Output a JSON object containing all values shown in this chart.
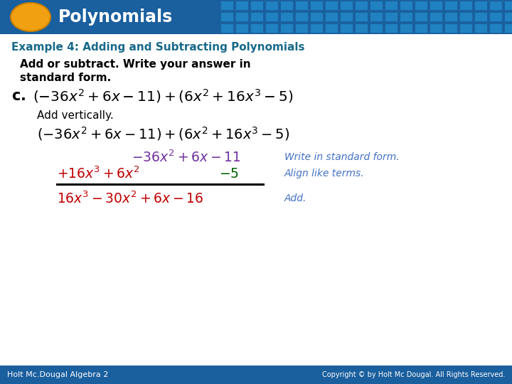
{
  "bg_color": "#ffffff",
  "header_bg_left": "#1a5f9e",
  "header_bg_right": "#1e82c8",
  "header_text": "Polynomials",
  "header_text_color": "#ffffff",
  "oval_color": "#f0a010",
  "oval_edge": "#c88000",
  "example_title": "Example 4: Adding and Subtracting Polynomials",
  "example_title_color": "#1a7a9a",
  "footer_bg": "#1a5f9e",
  "footer_left": "Holt Mc.Dougal Algebra 2",
  "footer_right": "Copyright © by Holt Mc Dougal. All Rights Reserved.",
  "footer_text_color": "#ffffff",
  "purple": "#7030a0",
  "red": "#c00000",
  "green": "#006000",
  "blue_annot": "#4472c4",
  "black": "#000000",
  "teal_title": "#17698a"
}
